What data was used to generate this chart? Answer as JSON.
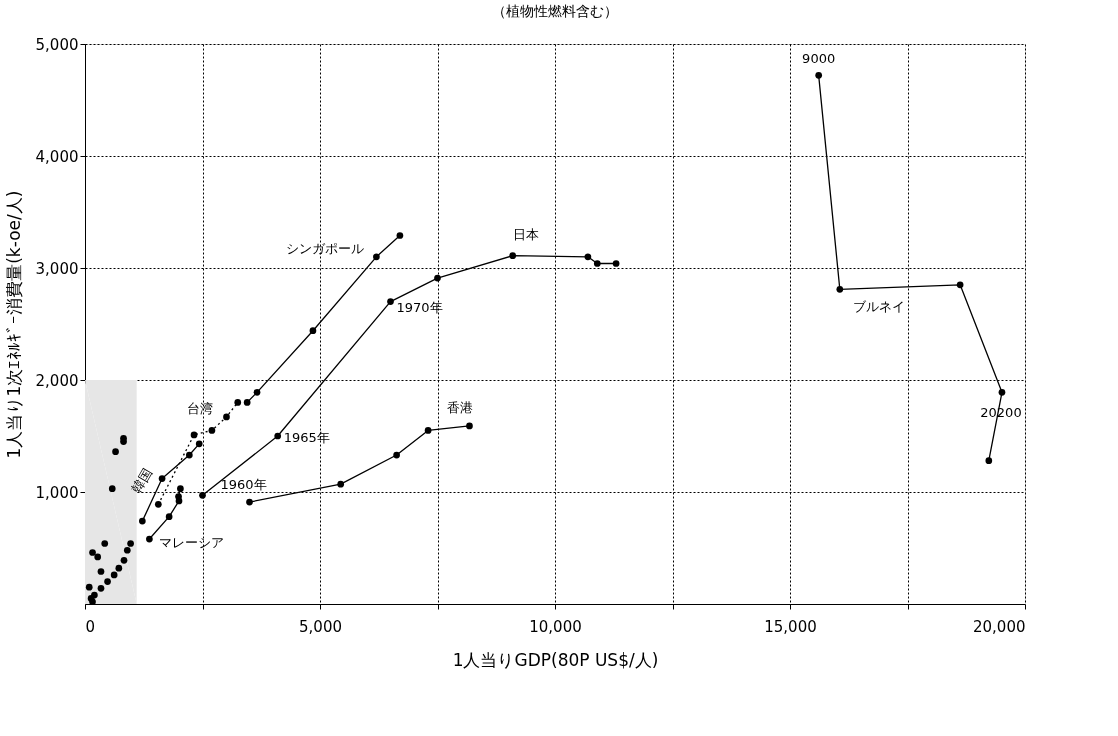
{
  "chart_data": {
    "type": "line",
    "title": "（植物性燃料含む）",
    "xlabel": "1人当りGDP(80P US$/人)",
    "ylabel": "1人当り1次ｴﾈﾙｷﾞｰ消費量(k-oe/人)",
    "xlim": [
      0,
      20000
    ],
    "ylim": [
      0,
      5000
    ],
    "xticks": [
      0,
      {
        "value": 2500,
        "label": null
      },
      {
        "value": 5000,
        "label": "5,000"
      },
      {
        "value": 7500,
        "label": null
      },
      {
        "value": 10000,
        "label": "10,000"
      },
      {
        "value": 12500,
        "label": null
      },
      {
        "value": 15000,
        "label": "15,000"
      },
      {
        "value": 17500,
        "label": null
      },
      {
        "value": 20000,
        "label": "20,000"
      }
    ],
    "yticks": [
      {
        "value": 1000,
        "label": "1,000"
      },
      {
        "value": 2000,
        "label": "2,000"
      },
      {
        "value": 3000,
        "label": "3,000"
      },
      {
        "value": 4000,
        "label": "4,000"
      },
      {
        "value": 5000,
        "label": "5,000"
      }
    ],
    "grid": true,
    "series": [
      {
        "type": "area",
        "color": "#e6e6e6",
        "x": [
          0,
          1100
        ],
        "values": [
          2000,
          2000
        ]
      },
      {
        "color": "#000000",
        "marker": "circle",
        "line_style": "solid",
        "x": [
          2500,
          4100,
          6500,
          7500,
          9100,
          10700,
          10900,
          11300
        ],
        "values": [
          970,
          1500,
          2700,
          2910,
          3110,
          3100,
          3040,
          3040
        ]
      },
      {
        "color": "#000000",
        "marker": "circle",
        "line_style": "solid",
        "x": [
          3450,
          3660,
          4850,
          6200,
          6700
        ],
        "values": [
          1800,
          1890,
          2440,
          3100,
          3290
        ]
      },
      {
        "color": "#000000",
        "marker": "circle",
        "line_style": "dotted",
        "x": [
          1560,
          2320,
          2700,
          3010,
          3250
        ],
        "values": [
          890,
          1510,
          1550,
          1670,
          1800
        ]
      },
      {
        "color": "#000000",
        "marker": "circle",
        "line_style": "solid",
        "x": [
          1220,
          1640,
          2220,
          2430
        ],
        "values": [
          740,
          1120,
          1330,
          1430
        ]
      },
      {
        "color": "#000000",
        "marker": "circle",
        "line_style": "solid",
        "x": [
          1370,
          1790,
          2000,
          1990,
          2030
        ],
        "values": [
          580,
          780,
          920,
          960,
          1030
        ]
      },
      {
        "color": "#000000",
        "marker": "circle",
        "line_style": "solid",
        "x": [
          3500,
          5440,
          6630,
          7300,
          8180
        ],
        "values": [
          910,
          1070,
          1330,
          1550,
          1590
        ]
      },
      {
        "color": "#000000",
        "marker": "circle",
        "line_style": "solid",
        "x": [
          15610,
          16060,
          18620,
          19510,
          19230
        ],
        "values": [
          4720,
          2810,
          2850,
          1890,
          1280
        ]
      },
      {
        "type": "scatter",
        "color": "#000000",
        "marker": "circle",
        "x": [
          820,
          820,
          650,
          580,
          420,
          270,
          160,
          130,
          160,
          200,
          340,
          480,
          620,
          720,
          830,
          900,
          970,
          340,
          90
        ],
        "values": [
          1480,
          1450,
          1360,
          1030,
          540,
          420,
          460,
          50,
          20,
          80,
          140,
          200,
          260,
          320,
          390,
          480,
          540,
          290,
          150
        ]
      }
    ],
    "annotations": [
      {
        "text": "日本",
        "x": 9100,
        "y": 3110
      },
      {
        "text": "シンガポール",
        "x": 6200,
        "y": 3100
      },
      {
        "text": "台湾",
        "x": 2320,
        "y": 1510
      },
      {
        "text": "韓国",
        "x": 1640,
        "y": 1120
      },
      {
        "text": "香港",
        "x": 8180,
        "y": 1590
      },
      {
        "text": "マレーシア",
        "x": 1370,
        "y": 580
      },
      {
        "text": "1960年",
        "x": 2500,
        "y": 970
      },
      {
        "text": "1965年",
        "x": 4100,
        "y": 1500
      },
      {
        "text": "1970年",
        "x": 6500,
        "y": 2700
      },
      {
        "text": "ブルネイ",
        "x": 16060,
        "y": 2810
      },
      {
        "text": "9000",
        "x": 15610,
        "y": 4720
      },
      {
        "text": "20200",
        "x": 19510,
        "y": 1890
      }
    ]
  }
}
